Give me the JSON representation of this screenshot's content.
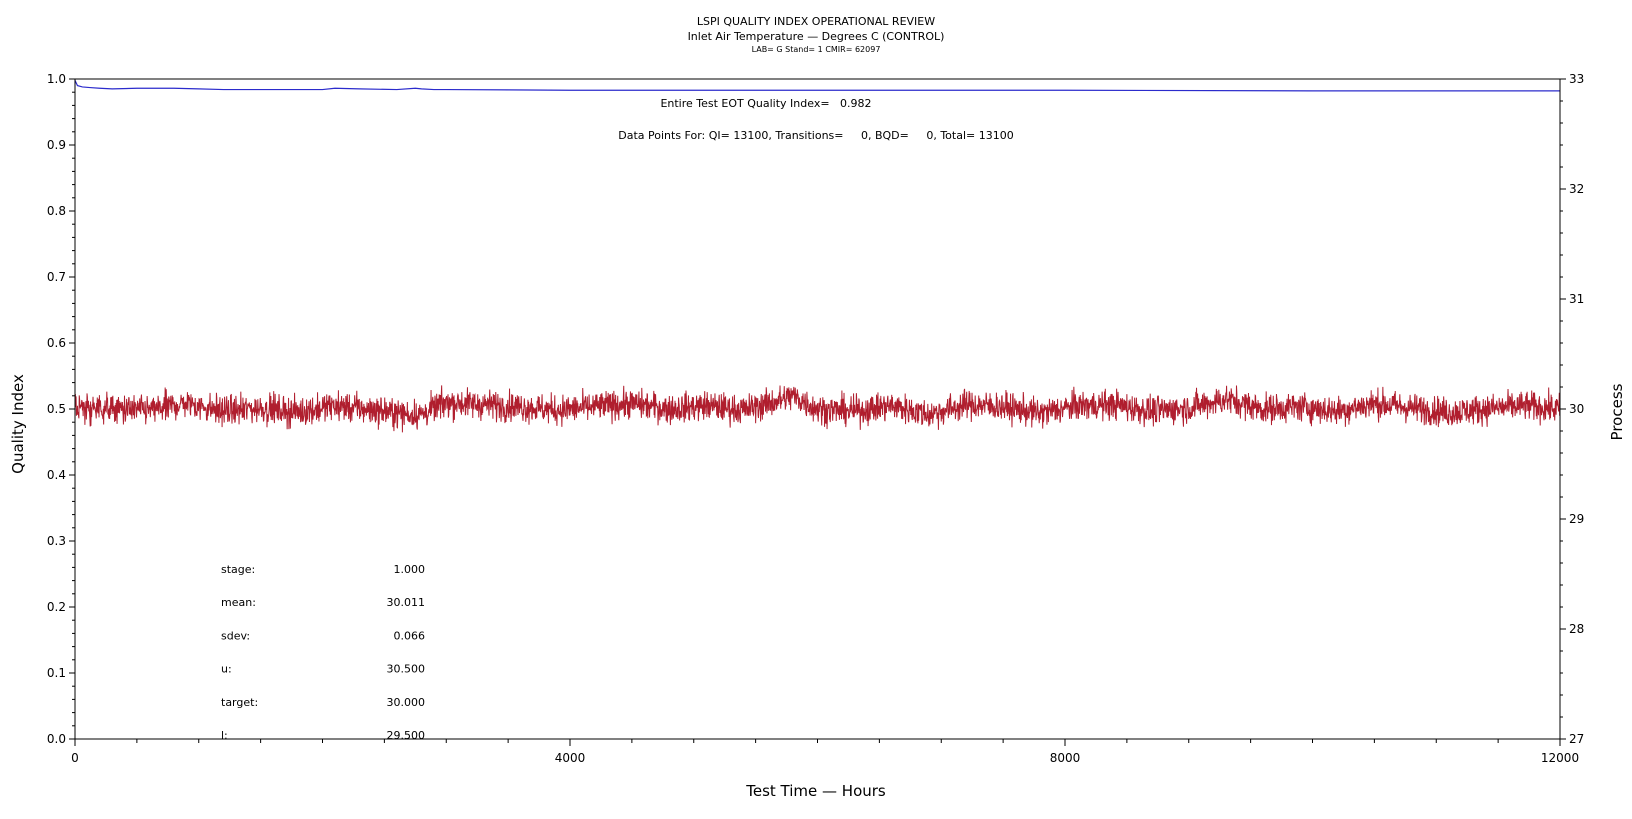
{
  "chart_data": {
    "type": "line",
    "title": "LSPI QUALITY INDEX OPERATIONAL REVIEW",
    "subtitle": "Inlet Air Temperature — Degrees C (CONTROL)",
    "caption": "LAB= G Stand= 1 CMIR= 62097",
    "annotations": [
      "Entire Test EOT Quality Index=   0.982",
      "Data Points For: QI= 13100, Transitions=     0, BQD=     0, Total= 13100"
    ],
    "xlabel": "Test Time — Hours",
    "ylabel": "Quality Index",
    "y2label": "Process",
    "xlim": [
      0,
      12000
    ],
    "ylim": [
      0,
      1.0
    ],
    "y2lim": [
      27,
      33
    ],
    "x_ticks": [
      "0",
      "4000",
      "8000",
      "12000"
    ],
    "y_ticks": [
      "0.0",
      "0.1",
      "0.2",
      "0.3",
      "0.4",
      "0.5",
      "0.6",
      "0.7",
      "0.8",
      "0.9",
      "1.0"
    ],
    "y2_ticks": [
      "27",
      "28",
      "29",
      "30",
      "31",
      "32",
      "33"
    ],
    "grid": false,
    "series": [
      {
        "axis": "left",
        "color": "#2b2bcc",
        "x": [
          0,
          20,
          60,
          120,
          200,
          300,
          500,
          800,
          1000,
          1200,
          2000,
          2100,
          2300,
          2600,
          2750,
          2800,
          2900,
          3000,
          4000,
          6000,
          8000,
          10000,
          12000
        ],
        "y": [
          0.998,
          0.99,
          0.988,
          0.987,
          0.986,
          0.985,
          0.986,
          0.986,
          0.985,
          0.984,
          0.984,
          0.986,
          0.985,
          0.984,
          0.986,
          0.985,
          0.984,
          0.984,
          0.983,
          0.983,
          0.983,
          0.982,
          0.982
        ]
      },
      {
        "axis": "right",
        "color": "#b01e2e",
        "x": [
          0,
          300,
          600,
          900,
          1200,
          1500,
          1800,
          2100,
          2400,
          2700,
          2800,
          3000,
          3300,
          3600,
          3900,
          4200,
          4500,
          4800,
          5100,
          5400,
          5700,
          5800,
          6000,
          6300,
          6600,
          6900,
          7200,
          7500,
          7800,
          8100,
          8400,
          8700,
          9000,
          9300,
          9600,
          9900,
          10200,
          10500,
          10800,
          11100,
          11400,
          11700,
          12000
        ],
        "y": [
          30.02,
          30.0,
          29.99,
          30.05,
          29.98,
          30.01,
          29.97,
          30.03,
          29.99,
          29.95,
          29.95,
          30.06,
          30.04,
          30.02,
          29.99,
          30.02,
          30.05,
          30.0,
          30.03,
          29.99,
          30.08,
          30.12,
          30.0,
          29.98,
          30.03,
          29.95,
          30.04,
          30.02,
          29.96,
          30.03,
          30.04,
          29.98,
          30.01,
          30.09,
          30.0,
          30.02,
          29.98,
          30.05,
          30.01,
          29.97,
          30.0,
          30.03,
          30.0
        ],
        "noise_sdev": 0.066
      }
    ],
    "stats": [
      {
        "label": "stage:",
        "value": "1.000"
      },
      {
        "label": "mean:",
        "value": "30.011"
      },
      {
        "label": "sdev:",
        "value": "0.066"
      },
      {
        "label": "u:",
        "value": "30.500"
      },
      {
        "label": "target:",
        "value": "30.000"
      },
      {
        "label": "l:",
        "value": "29.500"
      }
    ]
  }
}
